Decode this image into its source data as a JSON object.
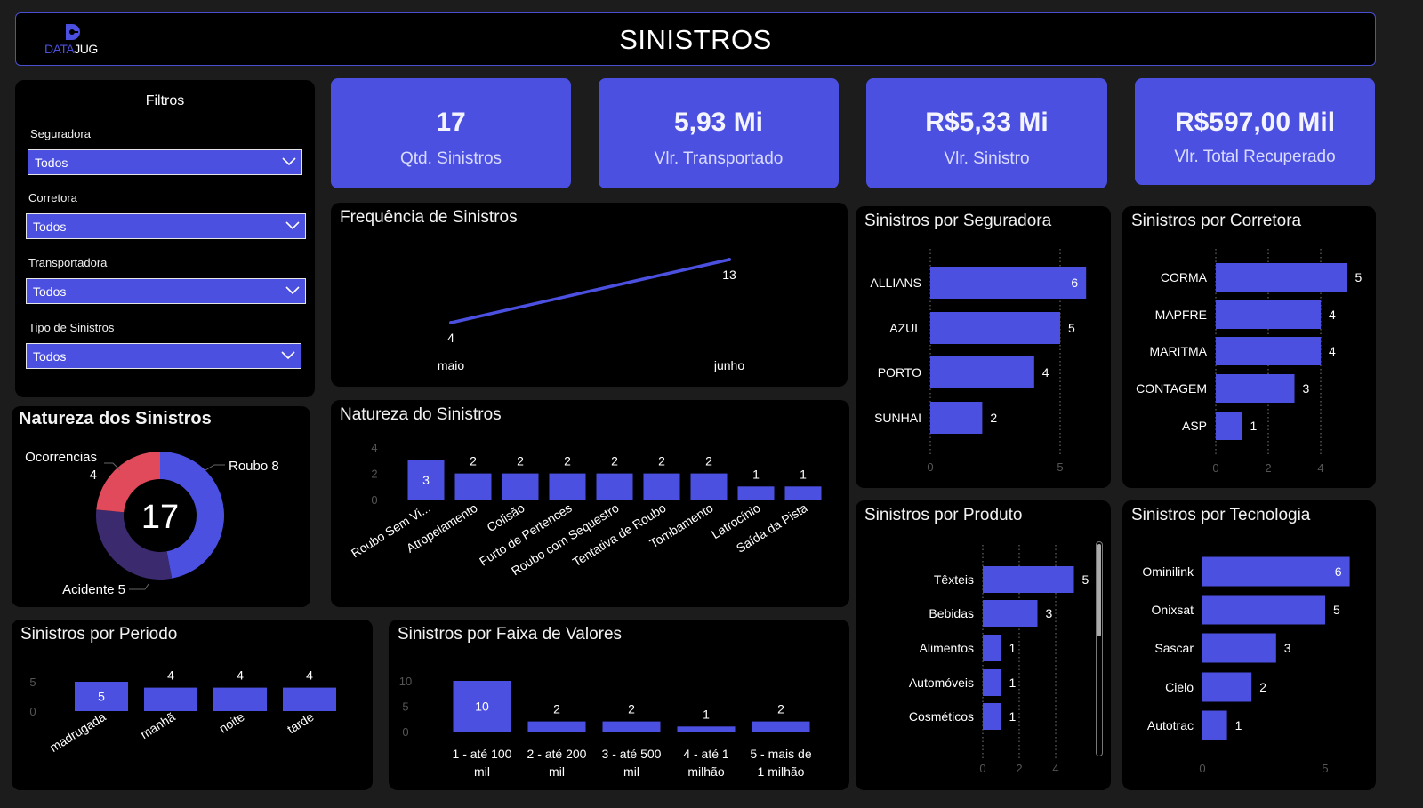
{
  "header": {
    "logo_a": "DATA",
    "logo_b": "JUG",
    "title": "SINISTROS"
  },
  "filters": {
    "title": "Filtros",
    "items": [
      {
        "label": "Seguradora",
        "value": "Todos"
      },
      {
        "label": "Corretora",
        "value": "Todos"
      },
      {
        "label": "Transportadora",
        "value": "Todos"
      },
      {
        "label": "Tipo de Sinistros",
        "value": "Todos"
      }
    ]
  },
  "kpis": [
    {
      "value": "17",
      "label": "Qtd. Sinistros"
    },
    {
      "value": "5,93 Mi",
      "label": "Vlr. Transportado"
    },
    {
      "value": "R$5,33 Mi",
      "label": "Vlr. Sinistro"
    },
    {
      "value": "R$597,00 Mil",
      "label": "Vlr. Total Recuperado"
    }
  ],
  "colors": {
    "accent": "#4b50e0",
    "background": "#1c1c1c",
    "panel": "#000000",
    "acidente": "#3b2a6e",
    "ocorrencias": "#e04a5a"
  },
  "chart_data": [
    {
      "type": "line",
      "title": "Frequência de Sinistros",
      "categories": [
        "maio",
        "junho"
      ],
      "values": [
        4,
        13
      ],
      "grid": false
    },
    {
      "type": "pie",
      "title": "Natureza dos Sinistros",
      "center_label": "17",
      "slices": [
        {
          "name": "Roubo",
          "value": 8,
          "color": "#4b50e0"
        },
        {
          "name": "Acidente",
          "value": 5,
          "color": "#3b2a6e"
        },
        {
          "name": "Ocorrencias",
          "value": 4,
          "color": "#e04a5a"
        }
      ]
    },
    {
      "type": "bar",
      "title": "Natureza do Sinistros",
      "categories": [
        "Roubo Sem Vi...",
        "Atropelamento",
        "Colisão",
        "Furto de Pertences",
        "Roubo com Sequestro",
        "Tentativa de Roubo",
        "Tombamento",
        "Latrocínio",
        "Saída da Pista"
      ],
      "values": [
        3,
        2,
        2,
        2,
        2,
        2,
        2,
        1,
        1
      ],
      "ticks": [
        0,
        2,
        4
      ],
      "ylim": [
        0,
        4
      ]
    },
    {
      "type": "bar",
      "orientation": "horizontal",
      "title": "Sinistros por Seguradora",
      "categories": [
        "ALLIANS",
        "AZUL",
        "PORTO",
        "SUNHAI"
      ],
      "values": [
        6,
        5,
        4,
        2
      ],
      "ticks": [
        0,
        5
      ],
      "grid": true
    },
    {
      "type": "bar",
      "orientation": "horizontal",
      "title": "Sinistros por Corretora",
      "categories": [
        "CORMA",
        "MAPFRE",
        "MARITMA",
        "CONTAGEM",
        "ASP"
      ],
      "values": [
        5,
        4,
        4,
        3,
        1
      ],
      "ticks": [
        0,
        2,
        4
      ],
      "grid": true
    },
    {
      "type": "bar",
      "orientation": "horizontal",
      "title": "Sinistros por Produto",
      "categories": [
        "Têxteis",
        "Bebidas",
        "Alimentos",
        "Automóveis",
        "Cosméticos"
      ],
      "values": [
        5,
        3,
        1,
        1,
        1
      ],
      "ticks": [
        0,
        2,
        4
      ],
      "grid": true
    },
    {
      "type": "bar",
      "orientation": "horizontal",
      "title": "Sinistros por Tecnologia",
      "categories": [
        "Ominilink",
        "Onixsat",
        "Sascar",
        "Cielo",
        "Autotrac"
      ],
      "values": [
        6,
        5,
        3,
        2,
        1
      ],
      "ticks": [
        0,
        5
      ],
      "grid": false
    },
    {
      "type": "bar",
      "title": "Sinistros por Periodo",
      "categories": [
        "madrugada",
        "manhã",
        "noite",
        "tarde"
      ],
      "values": [
        5,
        4,
        4,
        4
      ],
      "ticks": [
        0,
        5
      ],
      "ylim": [
        0,
        5
      ]
    },
    {
      "type": "bar",
      "title": "Sinistros por Faixa de Valores",
      "categories": [
        "1 - até 100 mil",
        "2 - até 200 mil",
        "3 - até 500 mil",
        "4 - até 1 milhão",
        "5 - mais de 1 milhão"
      ],
      "values": [
        10,
        2,
        2,
        1,
        2
      ],
      "ticks": [
        0,
        5,
        10
      ],
      "ylim": [
        0,
        10
      ]
    }
  ]
}
